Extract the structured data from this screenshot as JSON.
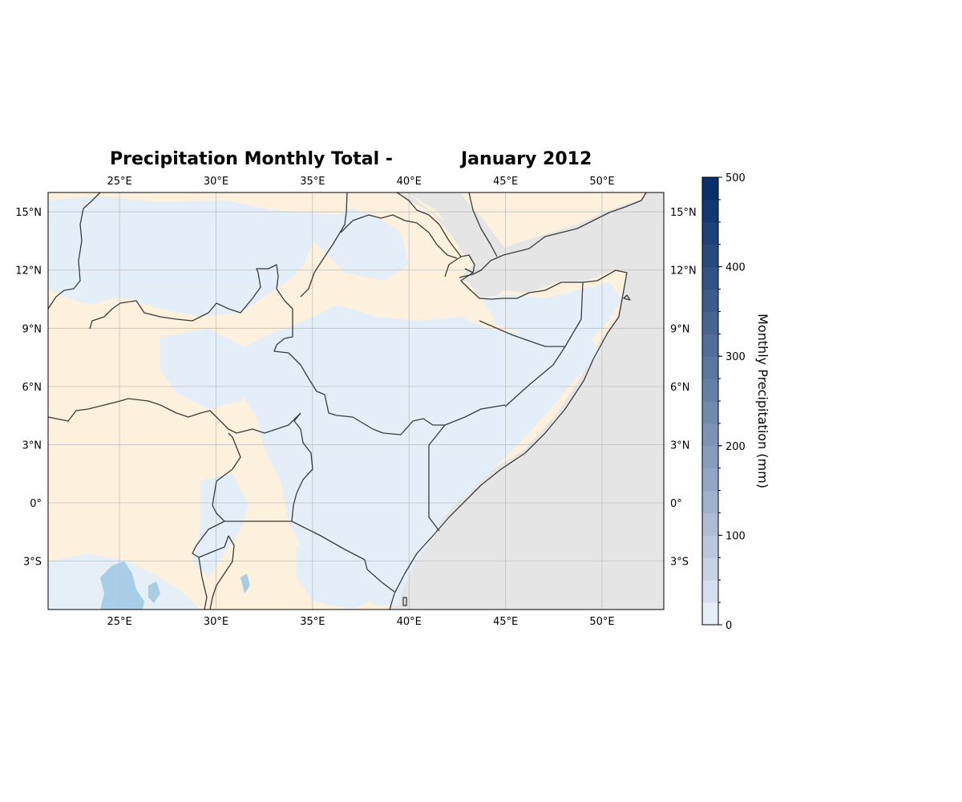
{
  "title": {
    "part1": "Precipitation Monthly Total -",
    "part2": "January 2012"
  },
  "map": {
    "lon_range": [
      21.3,
      53.2
    ],
    "lat_range": [
      -5.5,
      16.0
    ],
    "lon_ticks": [
      {
        "value": 25,
        "label": "25°E"
      },
      {
        "value": 30,
        "label": "30°E"
      },
      {
        "value": 35,
        "label": "35°E"
      },
      {
        "value": 40,
        "label": "40°E"
      },
      {
        "value": 45,
        "label": "45°E"
      },
      {
        "value": 50,
        "label": "50°E"
      }
    ],
    "lat_ticks": [
      {
        "value": 15,
        "label": "15°N"
      },
      {
        "value": 12,
        "label": "12°N"
      },
      {
        "value": 9,
        "label": "9°N"
      },
      {
        "value": 6,
        "label": "6°N"
      },
      {
        "value": 3,
        "label": "3°N"
      },
      {
        "value": 0,
        "label": "0°"
      },
      {
        "value": -3,
        "label": "3°S"
      }
    ],
    "gridlines": true,
    "colors": {
      "land_dry": "#fdf0dc",
      "ocean": "#e5e5e5",
      "light_precip": "#e4eef8",
      "moderate_precip": "#a9cde6",
      "border": "#3a3a3a",
      "grid": "#c0c0c0"
    }
  },
  "colorbar": {
    "label": "Monthly Precipitation (mm)",
    "min": 0,
    "max": 500,
    "ticks": [
      {
        "value": 0,
        "label": "0"
      },
      {
        "value": 100,
        "label": "100"
      },
      {
        "value": 200,
        "label": "200"
      },
      {
        "value": 300,
        "label": "300"
      },
      {
        "value": 400,
        "label": "400"
      },
      {
        "value": 500,
        "label": "500"
      }
    ],
    "levels": 20,
    "color_low": "#e6eff9",
    "color_high": "#08306b"
  }
}
